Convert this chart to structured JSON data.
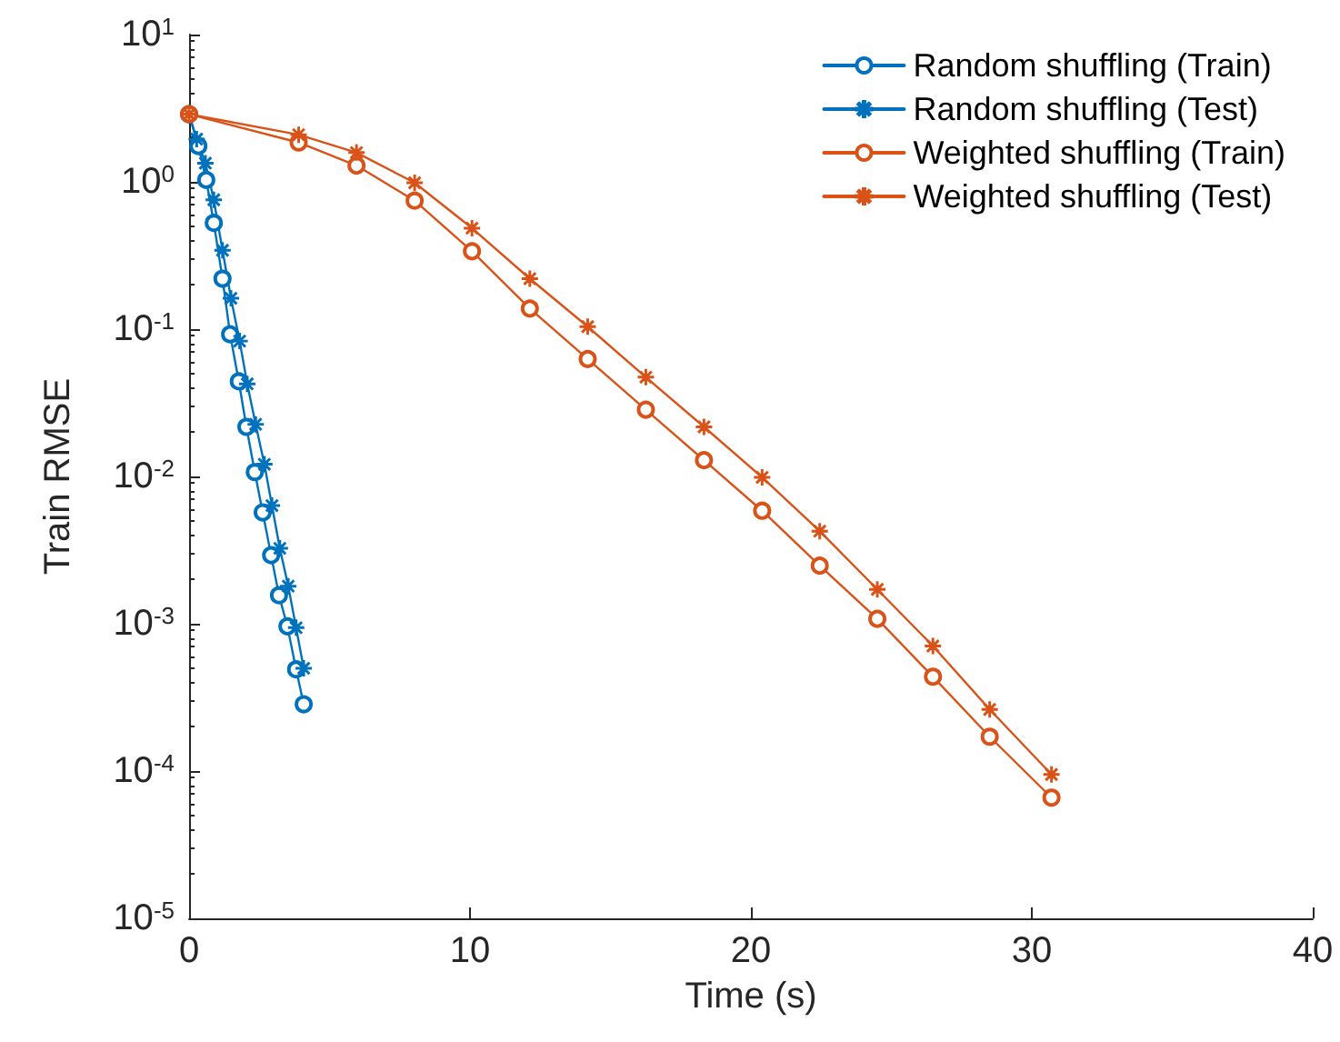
{
  "chart_data": {
    "type": "line",
    "xlabel": "Time (s)",
    "ylabel": "Train RMSE",
    "log": "y",
    "grid": false,
    "legend": "top right",
    "line_style": "solid",
    "xlim": [
      0,
      40
    ],
    "xticks": [
      0,
      10,
      20,
      30,
      40
    ],
    "ylim": [
      1e-05,
      10
    ],
    "yticks": [
      {
        "value": 1e-05,
        "label": "10$^{-5}$"
      },
      {
        "value": 0.0001,
        "label": "10$^{-4}$"
      },
      {
        "value": 0.001,
        "label": "10$^{-3}$"
      },
      {
        "value": 0.01,
        "label": "10$^{-2}$"
      },
      {
        "value": 0.1,
        "label": "10$^{-1}$"
      },
      {
        "value": 1,
        "label": "10$^{0}$"
      },
      {
        "value": 10,
        "label": "10$^{1}$"
      }
    ],
    "series": [
      {
        "name": "Random shuffling (Train)",
        "color": "#0072bd",
        "marker": "circle",
        "x": [
          0,
          0.33,
          0.61,
          0.88,
          1.19,
          1.46,
          1.77,
          2.04,
          2.34,
          2.62,
          2.92,
          3.2,
          3.5,
          3.81,
          4.08
        ],
        "values": [
          2.88,
          1.75,
          1.03,
          0.526,
          0.22,
          0.0923,
          0.0442,
          0.0217,
          0.0107,
          0.0057,
          0.00292,
          0.00156,
          0.00096,
          0.00049,
          0.000284
        ]
      },
      {
        "name": "Random shuffling (Test)",
        "color": "#0072bd",
        "marker": "star",
        "x": [
          0,
          0.27,
          0.58,
          0.88,
          1.19,
          1.49,
          1.8,
          2.07,
          2.37,
          2.68,
          2.95,
          3.23,
          3.53,
          3.81,
          4.08
        ],
        "values": [
          2.88,
          1.95,
          1.34,
          0.755,
          0.343,
          0.162,
          0.083,
          0.0425,
          0.0226,
          0.0121,
          0.00634,
          0.00325,
          0.0018,
          0.00094,
          0.000499
        ]
      },
      {
        "name": "Weighted shuffling (Train)",
        "color": "#d95319",
        "marker": "circle",
        "x": [
          0,
          3.9,
          5.96,
          8.03,
          10.07,
          12.13,
          14.19,
          16.26,
          18.33,
          20.4,
          22.45,
          24.5,
          26.48,
          28.5,
          30.7
        ],
        "values": [
          2.88,
          1.85,
          1.29,
          0.745,
          0.338,
          0.138,
          0.0627,
          0.0284,
          0.0129,
          0.00585,
          0.00248,
          0.00108,
          0.000437,
          0.000171,
          6.6e-05
        ]
      },
      {
        "name": "Weighted shuffling (Test)",
        "color": "#d95319",
        "marker": "star",
        "x": [
          0,
          3.9,
          5.96,
          8.03,
          10.07,
          12.13,
          14.19,
          16.26,
          18.33,
          20.4,
          22.45,
          24.5,
          26.48,
          28.5,
          30.7
        ],
        "values": [
          2.88,
          2.09,
          1.58,
          0.986,
          0.485,
          0.22,
          0.104,
          0.0472,
          0.0217,
          0.00986,
          0.00425,
          0.00171,
          0.000706,
          0.000262,
          9.48e-05
        ]
      }
    ]
  }
}
